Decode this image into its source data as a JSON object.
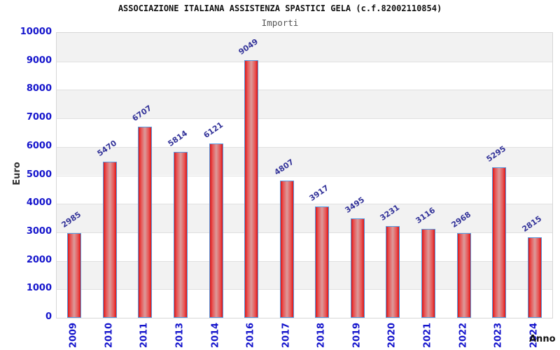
{
  "chart_data": {
    "type": "bar",
    "title": "ASSOCIAZIONE ITALIANA ASSISTENZA SPASTICI GELA (c.f.82002110854)",
    "subtitle": "Importi",
    "xlabel": "Anno",
    "ylabel": "Euro",
    "categories": [
      "2009",
      "2010",
      "2011",
      "2013",
      "2014",
      "2016",
      "2017",
      "2018",
      "2019",
      "2020",
      "2021",
      "2022",
      "2023",
      "2024"
    ],
    "values": [
      2985,
      5470,
      6707,
      5814,
      6121,
      9049,
      4807,
      3917,
      3495,
      3231,
      3116,
      2968,
      5295,
      2815
    ],
    "ylim": [
      0,
      10000
    ],
    "ytick_step": 1000,
    "ytick_labels": [
      "0",
      "1000",
      "2000",
      "3000",
      "4000",
      "5000",
      "6000",
      "7000",
      "8000",
      "9000",
      "10000"
    ],
    "grid": true,
    "legend": "none",
    "colors": {
      "bar_edge_red": "#dd1414",
      "bar_mid_red": "#e85050",
      "bar_center_light": "#dc9a9a",
      "bar_border_blue": "#5599e0",
      "axis_tick_blue": "#1414cc",
      "value_label_blue": "#333399",
      "band_gray": "#f2f2f2",
      "gridline_gray": "#e0e0e0",
      "plot_border_gray": "#d6d6d6",
      "title_black": "#111111",
      "subtitle_gray": "#555555",
      "axis_label_dark": "#333333"
    }
  }
}
